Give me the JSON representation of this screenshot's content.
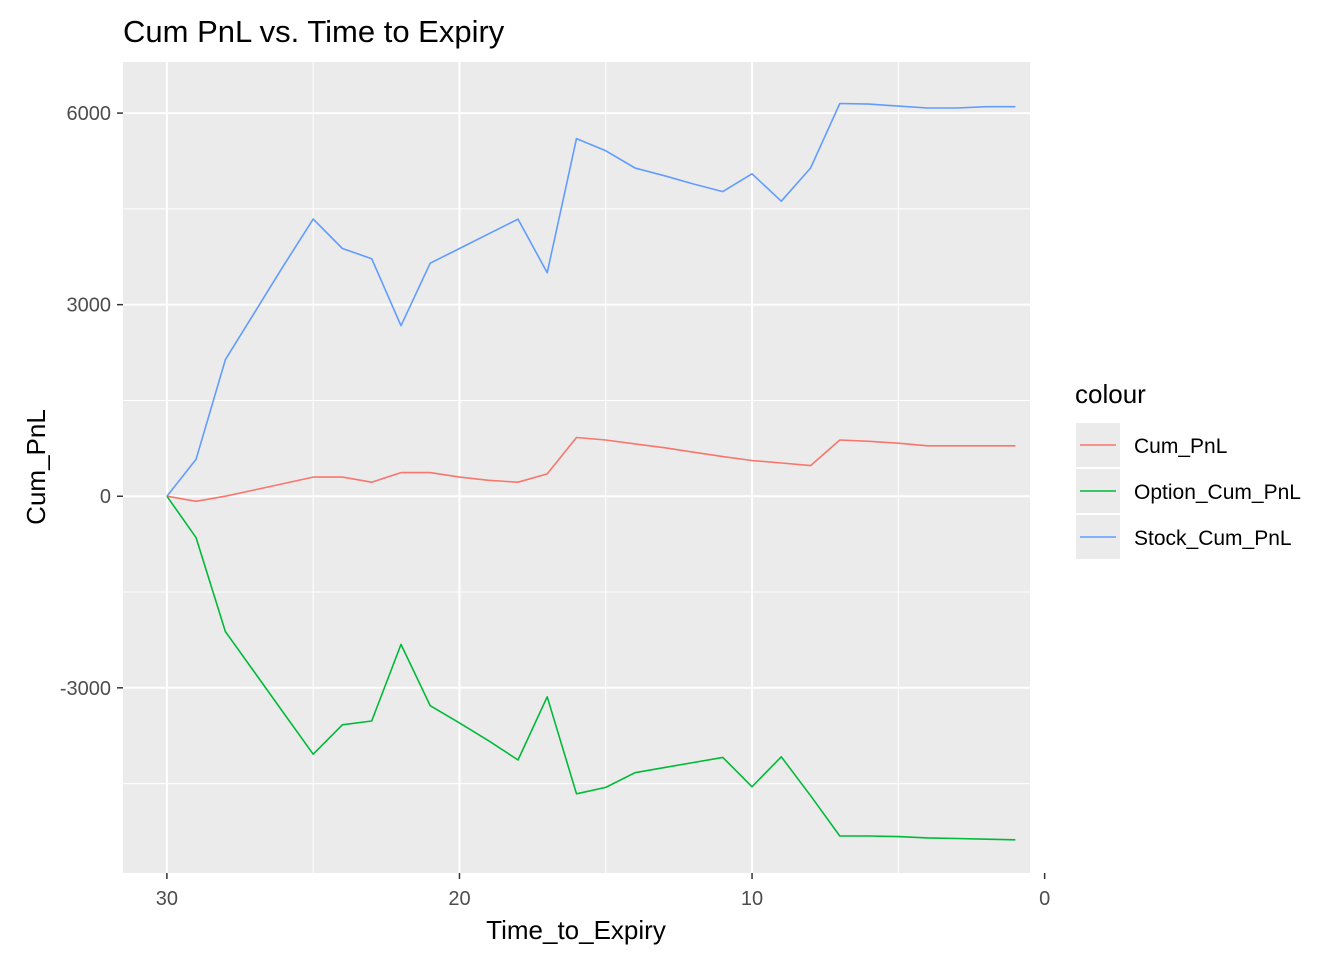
{
  "chart_data": {
    "type": "line",
    "title": "Cum PnL vs. Time to Expiry",
    "xlabel": "Time_to_Expiry",
    "ylabel": "Cum_PnL",
    "x_reversed": true,
    "xlim": [
      31.5,
      0.5
    ],
    "ylim": [
      -5900,
      6800
    ],
    "x_ticks": [
      30,
      20,
      10,
      0
    ],
    "x_tick_labels": [
      "30",
      "20",
      "10",
      "0"
    ],
    "y_ticks": [
      6000,
      3000,
      0,
      -3000
    ],
    "y_tick_labels": [
      "6000",
      "3000",
      "0",
      "-3000"
    ],
    "grid": true,
    "legend": {
      "title": "colour",
      "position": "right"
    },
    "x": [
      30,
      29,
      28,
      27,
      26,
      25,
      24,
      23,
      22,
      21,
      20,
      19,
      18,
      17,
      16,
      15,
      14,
      13,
      12,
      11,
      10,
      9,
      8,
      7,
      6,
      5,
      4,
      3,
      2,
      1
    ],
    "series": [
      {
        "name": "Cum_PnL",
        "color": "#F8766D",
        "values": [
          0,
          -80,
          0,
          100,
          200,
          300,
          300,
          220,
          370,
          370,
          300,
          250,
          220,
          350,
          920,
          880,
          820,
          760,
          690,
          620,
          560,
          520,
          480,
          880,
          860,
          830,
          790,
          790,
          790,
          790
        ]
      },
      {
        "name": "Option_Cum_PnL",
        "color": "#00BA38",
        "values": [
          0,
          -650,
          -2120,
          -2760,
          -3400,
          -4040,
          -3580,
          -3520,
          -2320,
          -3280,
          -3550,
          -3830,
          -4130,
          -3140,
          -4660,
          -4560,
          -4330,
          -4250,
          -4170,
          -4090,
          -4550,
          -4080,
          -4690,
          -5320,
          -5320,
          -5330,
          -5350,
          -5360,
          -5370,
          -5380
        ]
      },
      {
        "name": "Stock_Cum_PnL",
        "color": "#619CFF",
        "values": [
          0,
          580,
          2140,
          2880,
          3620,
          4340,
          3880,
          3720,
          2670,
          3650,
          3880,
          4110,
          4340,
          3500,
          5600,
          5410,
          5140,
          5020,
          4890,
          4770,
          5050,
          4620,
          5140,
          6150,
          6140,
          6110,
          6080,
          6080,
          6100,
          6100
        ]
      }
    ]
  }
}
